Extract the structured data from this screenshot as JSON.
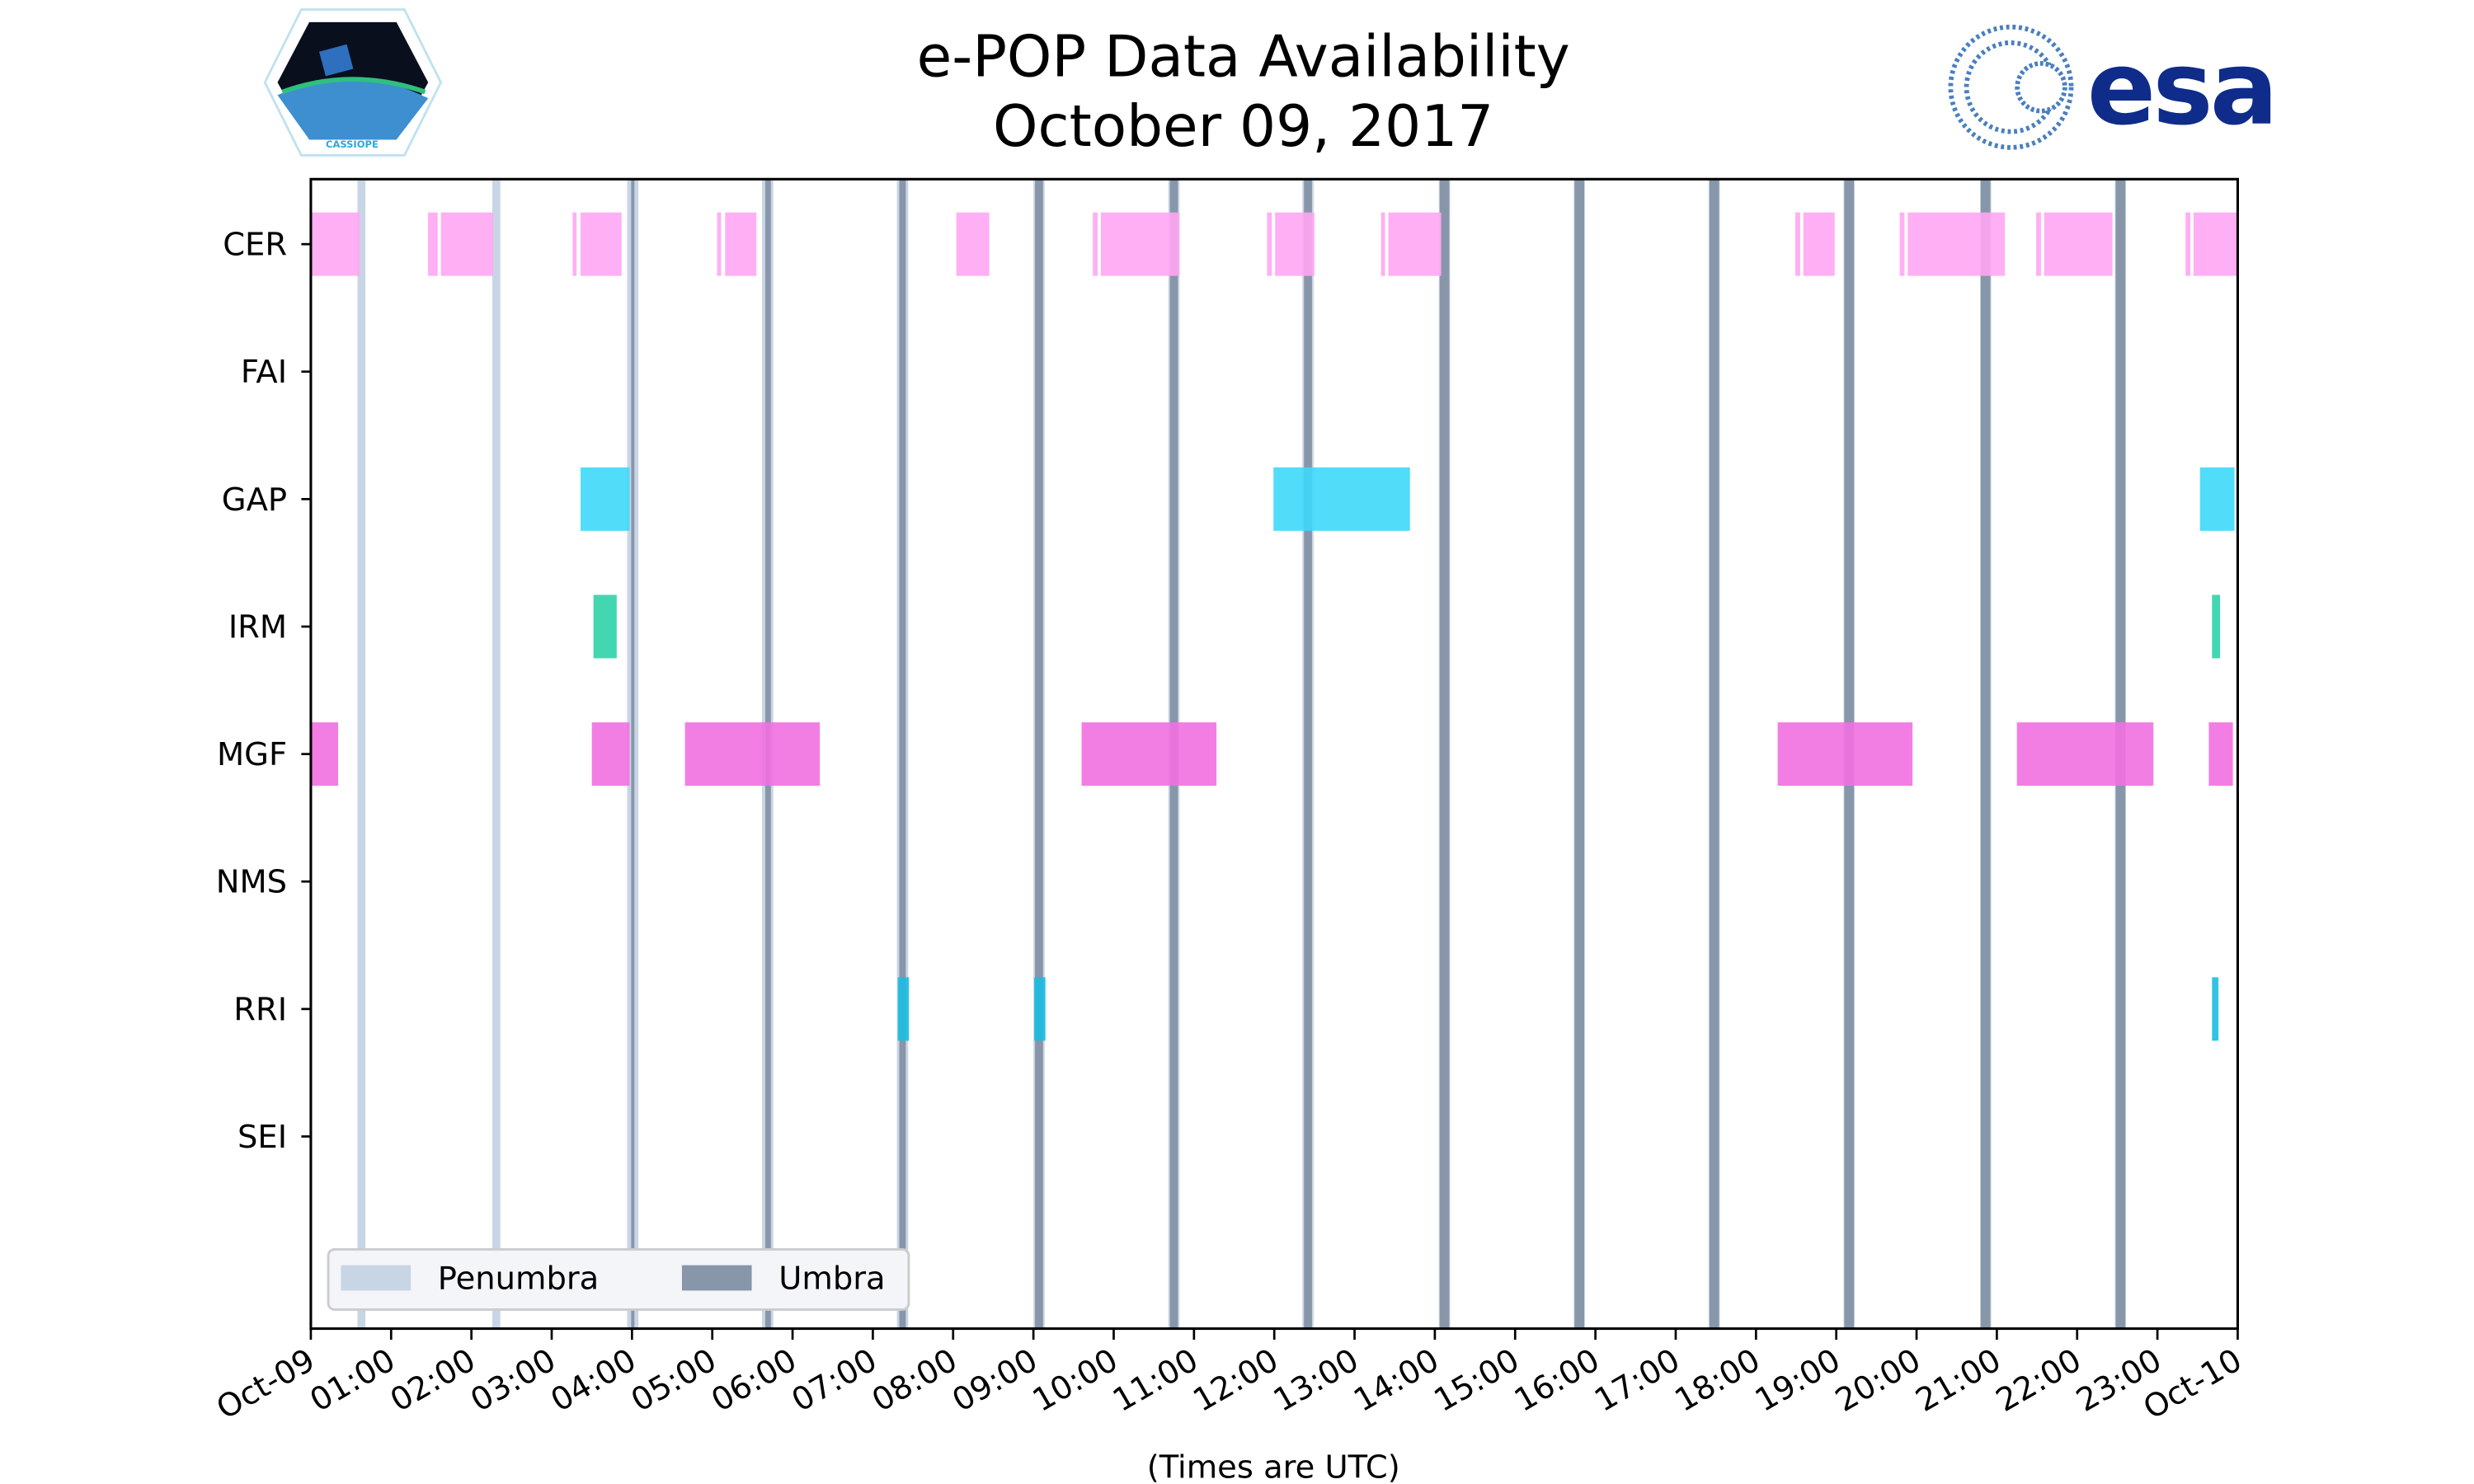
{
  "chart_data": {
    "type": "timeline",
    "title": "e-POP Data Availability",
    "subtitle": "October 09, 2017",
    "xlabel": "(Times are UTC)",
    "xlim_hours": [
      0,
      24
    ],
    "x_tick_labels": [
      "Oct-09",
      "01:00",
      "02:00",
      "03:00",
      "04:00",
      "05:00",
      "06:00",
      "07:00",
      "08:00",
      "09:00",
      "10:00",
      "11:00",
      "12:00",
      "13:00",
      "14:00",
      "15:00",
      "16:00",
      "17:00",
      "18:00",
      "19:00",
      "20:00",
      "21:00",
      "22:00",
      "23:00",
      "Oct-10"
    ],
    "instruments": [
      {
        "name": "CER",
        "color": "#FFA6F3",
        "segments": [
          [
            0,
            0.61
          ],
          [
            1.46,
            1.58
          ],
          [
            1.62,
            2.27
          ],
          [
            3.26,
            3.31
          ],
          [
            3.36,
            3.87
          ],
          [
            5.06,
            5.11
          ],
          [
            5.16,
            5.55
          ],
          [
            8.04,
            8.45
          ],
          [
            9.74,
            9.8
          ],
          [
            9.84,
            10.82
          ],
          [
            11.91,
            11.97
          ],
          [
            12.01,
            12.5
          ],
          [
            13.33,
            13.38
          ],
          [
            13.42,
            14.08
          ],
          [
            18.49,
            18.55
          ],
          [
            18.59,
            18.98
          ],
          [
            19.79,
            19.85
          ],
          [
            19.89,
            21.1
          ],
          [
            21.49,
            21.55
          ],
          [
            21.59,
            22.44
          ],
          [
            23.35,
            23.41
          ],
          [
            23.45,
            24
          ]
        ]
      },
      {
        "name": "FAI",
        "color": "#999999",
        "segments": []
      },
      {
        "name": "GAP",
        "color": "#3ED8FA",
        "segments": [
          [
            3.36,
            3.97
          ],
          [
            11.99,
            13.69
          ],
          [
            23.53,
            23.96
          ]
        ]
      },
      {
        "name": "IRM",
        "color": "#2ED3A8",
        "segments": [
          [
            3.52,
            3.81
          ],
          [
            23.68,
            23.78
          ]
        ]
      },
      {
        "name": "MGF",
        "color": "#F270E0",
        "segments": [
          [
            0,
            0.34
          ],
          [
            3.5,
            3.97
          ],
          [
            4.66,
            6.34
          ],
          [
            9.6,
            11.28
          ],
          [
            18.27,
            19.95
          ],
          [
            21.25,
            22.95
          ],
          [
            23.64,
            23.94
          ]
        ]
      },
      {
        "name": "NMS",
        "color": "#999999",
        "segments": []
      },
      {
        "name": "RRI",
        "color": "#1CBDE0",
        "segments": [
          [
            7.31,
            7.45
          ],
          [
            9.01,
            9.15
          ],
          [
            23.68,
            23.76
          ]
        ]
      },
      {
        "name": "SEI",
        "color": "#999999",
        "segments": []
      }
    ],
    "eclipses": [
      {
        "penumbra": [
          0.58,
          0.68
        ],
        "umbra": null
      },
      {
        "penumbra": [
          2.26,
          2.36
        ],
        "umbra": null
      },
      {
        "penumbra": [
          3.94,
          4.08
        ],
        "umbra": [
          3.99,
          4.03
        ]
      },
      {
        "penumbra": [
          5.62,
          5.76
        ],
        "umbra": [
          5.66,
          5.73
        ]
      },
      {
        "penumbra": [
          7.3,
          7.44
        ],
        "umbra": [
          7.33,
          7.41
        ]
      },
      {
        "penumbra": [
          9.0,
          9.14
        ],
        "umbra": [
          9.02,
          9.12
        ]
      },
      {
        "penumbra": [
          10.68,
          10.82
        ],
        "umbra": [
          10.7,
          10.8
        ]
      },
      {
        "penumbra": [
          12.35,
          12.49
        ],
        "umbra": [
          12.37,
          12.47
        ]
      },
      {
        "penumbra": [
          14.05,
          14.19
        ],
        "umbra": [
          14.06,
          14.18
        ]
      },
      {
        "penumbra": [
          15.73,
          15.87
        ],
        "umbra": [
          15.74,
          15.86
        ]
      },
      {
        "penumbra": [
          17.41,
          17.55
        ],
        "umbra": [
          17.42,
          17.54
        ]
      },
      {
        "penumbra": [
          19.09,
          19.23
        ],
        "umbra": [
          19.1,
          19.22
        ]
      },
      {
        "penumbra": [
          20.79,
          20.93
        ],
        "umbra": [
          20.8,
          20.92
        ]
      },
      {
        "penumbra": [
          22.47,
          22.61
        ],
        "umbra": [
          22.48,
          22.6
        ]
      }
    ],
    "legend": {
      "position": "lower-left",
      "entries": [
        {
          "label": "Penumbra",
          "color": "#C8D5E5"
        },
        {
          "label": "Umbra",
          "color": "#8796A8"
        }
      ]
    }
  },
  "logos": {
    "left": "CASSIOPE",
    "right": "esa"
  }
}
